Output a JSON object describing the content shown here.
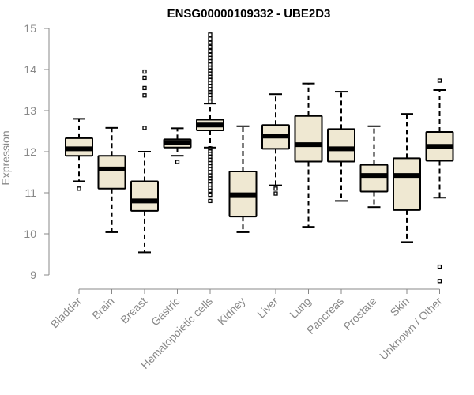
{
  "chart_data": {
    "type": "boxplot",
    "title": "ENSG00000109332 - UBE2D3",
    "xlabel": "",
    "ylabel": "Expression",
    "ylim": [
      9,
      15
    ],
    "yticks": [
      9,
      10,
      11,
      12,
      13,
      14,
      15
    ],
    "grid": false,
    "box_fill": "#efe8d2",
    "categories": [
      "Bladder",
      "Brain",
      "Breast",
      "Gastric",
      "Hematopoietic cells",
      "Kidney",
      "Liver",
      "Lung",
      "Pancreas",
      "Prostate",
      "Skin",
      "Unknown / Other"
    ],
    "boxes": [
      {
        "name": "Bladder",
        "whisker_low": 11.28,
        "q1": 11.9,
        "median": 12.07,
        "q3": 12.33,
        "whisker_high": 12.8,
        "outliers": [
          11.1
        ]
      },
      {
        "name": "Brain",
        "whisker_low": 10.04,
        "q1": 11.1,
        "median": 11.58,
        "q3": 11.9,
        "whisker_high": 12.58,
        "outliers": []
      },
      {
        "name": "Breast",
        "whisker_low": 9.55,
        "q1": 10.56,
        "median": 10.8,
        "q3": 11.28,
        "whisker_high": 12.0,
        "outliers": [
          12.58,
          13.37,
          13.55,
          13.8,
          13.95
        ]
      },
      {
        "name": "Gastric",
        "whisker_low": 11.9,
        "q1": 12.1,
        "median": 12.22,
        "q3": 12.3,
        "whisker_high": 12.57,
        "outliers": [
          11.75
        ]
      },
      {
        "name": "Hematopoietic cells",
        "whisker_low": 12.1,
        "q1": 12.52,
        "median": 12.65,
        "q3": 12.78,
        "whisker_high": 13.17,
        "outliers": [
          10.8,
          10.95,
          11.05,
          11.12,
          11.2,
          11.28,
          11.35,
          11.42,
          11.5,
          11.58,
          11.65,
          11.72,
          11.8,
          11.88,
          11.95,
          12.02,
          12.08,
          13.22,
          13.3,
          13.38,
          13.45,
          13.52,
          13.6,
          13.68,
          13.75,
          13.82,
          13.9,
          13.98,
          14.05,
          14.12,
          14.2,
          14.28,
          14.36,
          14.45,
          14.55,
          14.65,
          14.75,
          14.85
        ]
      },
      {
        "name": "Kidney",
        "whisker_low": 10.04,
        "q1": 10.42,
        "median": 10.95,
        "q3": 11.52,
        "whisker_high": 12.62,
        "outliers": []
      },
      {
        "name": "Liver",
        "whisker_low": 11.18,
        "q1": 12.07,
        "median": 12.38,
        "q3": 12.65,
        "whisker_high": 13.4,
        "outliers": [
          10.98,
          11.1
        ]
      },
      {
        "name": "Lung",
        "whisker_low": 10.17,
        "q1": 11.76,
        "median": 12.17,
        "q3": 12.87,
        "whisker_high": 13.66,
        "outliers": []
      },
      {
        "name": "Pancreas",
        "whisker_low": 10.8,
        "q1": 11.76,
        "median": 12.07,
        "q3": 12.55,
        "whisker_high": 13.46,
        "outliers": []
      },
      {
        "name": "Prostate",
        "whisker_low": 10.65,
        "q1": 11.03,
        "median": 11.42,
        "q3": 11.68,
        "whisker_high": 12.62,
        "outliers": []
      },
      {
        "name": "Skin",
        "whisker_low": 9.8,
        "q1": 10.58,
        "median": 11.42,
        "q3": 11.84,
        "whisker_high": 12.92,
        "outliers": []
      },
      {
        "name": "Unknown / Other",
        "whisker_low": 10.88,
        "q1": 11.78,
        "median": 12.13,
        "q3": 12.48,
        "whisker_high": 13.5,
        "outliers": [
          8.85,
          9.2,
          13.73
        ]
      }
    ]
  }
}
